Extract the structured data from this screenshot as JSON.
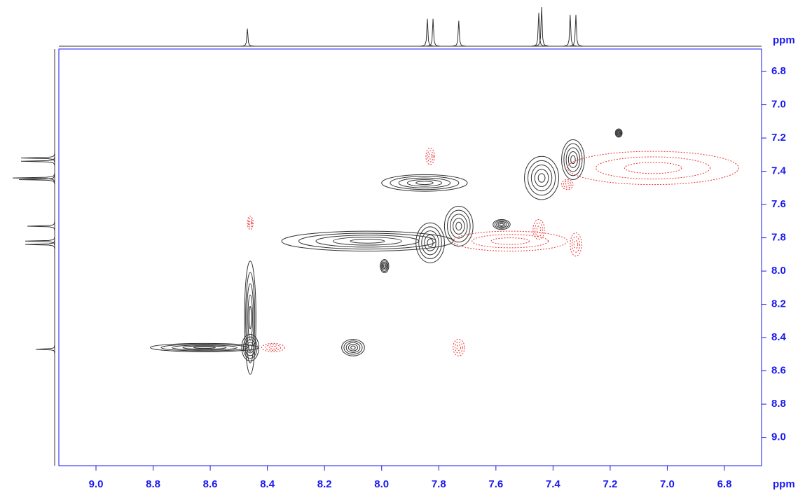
{
  "chart_data": {
    "type": "contour",
    "x_unit": "ppm",
    "y_unit": "ppm",
    "xlim": [
      9.13,
      6.67
    ],
    "ylim": [
      6.665,
      9.17
    ],
    "xticks": [
      {
        "value": 9,
        "label": "9.0"
      },
      8.8,
      8.6,
      8.4,
      8.2,
      {
        "value": 8,
        "label": "8.0"
      },
      7.8,
      7.6,
      7.4,
      7.2,
      {
        "value": 7,
        "label": "7.0"
      },
      6.8
    ],
    "yticks": [
      6.8,
      {
        "value": 7,
        "label": "7.0"
      },
      7.2,
      7.4,
      7.6,
      7.8,
      {
        "value": 8,
        "label": "8.0"
      },
      8.2,
      8.4,
      8.6,
      8.8,
      {
        "value": 9,
        "label": "9.0"
      }
    ],
    "axis_color": "#1a1aee",
    "series": [
      {
        "color": "#333333",
        "dashed": false,
        "levels": 5,
        "x": [
          8.46,
          8.62,
          8.46,
          8.1,
          7.99,
          7.83,
          7.73,
          7.44,
          7.33,
          8.05,
          7.85,
          7.58,
          7.17
        ],
        "y": [
          8.46,
          8.46,
          8.28,
          8.46,
          7.97,
          7.83,
          7.73,
          7.44,
          7.33,
          7.82,
          7.47,
          7.72,
          7.17
        ],
        "sx": [
          0.03,
          0.19,
          0.02,
          0.04,
          0.015,
          0.05,
          0.05,
          0.06,
          0.04,
          0.3,
          0.15,
          0.03,
          0.012
        ],
        "sy": [
          0.08,
          0.025,
          0.34,
          0.05,
          0.04,
          0.12,
          0.12,
          0.13,
          0.12,
          0.06,
          0.05,
          0.03,
          0.025
        ]
      },
      {
        "color": "#ee3333",
        "dashed": true,
        "levels": 3,
        "x": [
          8.46,
          7.83,
          8.38,
          7.73,
          7.45,
          7.32,
          7.35,
          7.05,
          7.55
        ],
        "y": [
          7.71,
          7.31,
          8.46,
          8.46,
          7.75,
          7.84,
          7.48,
          7.38,
          7.82
        ],
        "sx": [
          0.01,
          0.015,
          0.04,
          0.02,
          0.02,
          0.02,
          0.02,
          0.3,
          0.2
        ],
        "sy": [
          0.04,
          0.05,
          0.025,
          0.05,
          0.06,
          0.07,
          0.03,
          0.1,
          0.06
        ]
      }
    ],
    "projection": {
      "color": "#333333",
      "peaks": [
        8.47,
        7.84,
        7.82,
        7.73,
        7.45,
        7.44,
        7.34,
        7.32
      ],
      "heights": [
        0.45,
        0.7,
        0.7,
        0.65,
        0.85,
        1.0,
        0.8,
        0.8
      ],
      "width": 0.008
    }
  }
}
